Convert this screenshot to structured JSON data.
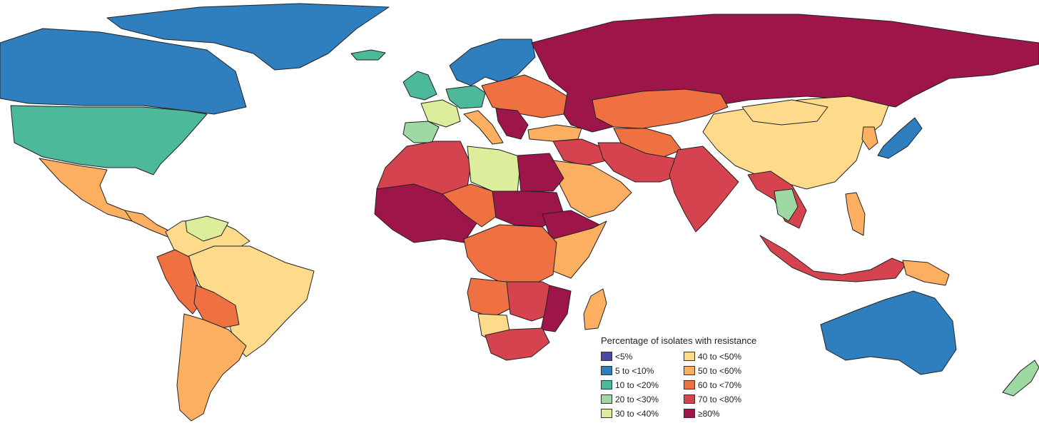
{
  "legend": {
    "title": "Percentage of isolates with resistance",
    "items": [
      {
        "label": "<5%",
        "color": "#4b4aa3"
      },
      {
        "label": "5 to <10%",
        "color": "#2f7fbf"
      },
      {
        "label": "10 to <20%",
        "color": "#4cb99b"
      },
      {
        "label": "20 to <30%",
        "color": "#9ed8a3"
      },
      {
        "label": "30 to <40%",
        "color": "#dcee9c"
      },
      {
        "label": "40 to <50%",
        "color": "#fedb8b"
      },
      {
        "label": "50 to <60%",
        "color": "#fcae61"
      },
      {
        "label": "60 to <70%",
        "color": "#ef7040"
      },
      {
        "label": "70 to <80%",
        "color": "#d5434f"
      },
      {
        "label": "≥80%",
        "color": "#9e1549"
      }
    ]
  },
  "regions": [
    {
      "name": "greenland",
      "class": "5 to <10%"
    },
    {
      "name": "canada",
      "class": "5 to <10%"
    },
    {
      "name": "united-states",
      "class": "10 to <20%"
    },
    {
      "name": "mexico",
      "class": "50 to <60%"
    },
    {
      "name": "central-america",
      "class": "50 to <60%"
    },
    {
      "name": "colombia-venezuela",
      "class": "40 to <50%"
    },
    {
      "name": "guyana",
      "class": "30 to <40%"
    },
    {
      "name": "brazil",
      "class": "40 to <50%"
    },
    {
      "name": "peru",
      "class": "60 to <70%"
    },
    {
      "name": "bolivia",
      "class": "60 to <70%"
    },
    {
      "name": "argentina-chile",
      "class": "50 to <60%"
    },
    {
      "name": "iceland",
      "class": "10 to <20%"
    },
    {
      "name": "scandinavia",
      "class": "5 to <10%"
    },
    {
      "name": "uk-ireland",
      "class": "10 to <20%"
    },
    {
      "name": "france",
      "class": "30 to <40%"
    },
    {
      "name": "iberia",
      "class": "20 to <30%"
    },
    {
      "name": "germany",
      "class": "10 to <20%"
    },
    {
      "name": "eastern-europe",
      "class": "60 to <70%"
    },
    {
      "name": "italy",
      "class": "50 to <60%"
    },
    {
      "name": "balkans",
      "class": "≥80%"
    },
    {
      "name": "russia",
      "class": "≥80%"
    },
    {
      "name": "kazakhstan",
      "class": "60 to <70%"
    },
    {
      "name": "turkey",
      "class": "50 to <60%"
    },
    {
      "name": "middle-east",
      "class": "70 to <80%"
    },
    {
      "name": "arabia",
      "class": "50 to <60%"
    },
    {
      "name": "central-asia",
      "class": "60 to <70%"
    },
    {
      "name": "iran-afghanistan",
      "class": "70 to <80%"
    },
    {
      "name": "india",
      "class": "70 to <80%"
    },
    {
      "name": "china",
      "class": "40 to <50%"
    },
    {
      "name": "mongolia",
      "class": "40 to <50%"
    },
    {
      "name": "japan",
      "class": "5 to <10%"
    },
    {
      "name": "korea",
      "class": "50 to <60%"
    },
    {
      "name": "southeast-asia",
      "class": "70 to <80%"
    },
    {
      "name": "thailand",
      "class": "20 to <30%"
    },
    {
      "name": "philippines",
      "class": "50 to <60%"
    },
    {
      "name": "indonesia",
      "class": "70 to <80%"
    },
    {
      "name": "papua",
      "class": "50 to <60%"
    },
    {
      "name": "australia",
      "class": "5 to <10%"
    },
    {
      "name": "new-zealand",
      "class": "20 to <30%"
    },
    {
      "name": "morocco-algeria",
      "class": "70 to <80%"
    },
    {
      "name": "libya",
      "class": "30 to <40%"
    },
    {
      "name": "egypt",
      "class": "≥80%"
    },
    {
      "name": "west-africa",
      "class": "≥80%"
    },
    {
      "name": "sahel",
      "class": "60 to <70%"
    },
    {
      "name": "sudan",
      "class": "≥80%"
    },
    {
      "name": "ethiopia",
      "class": "≥80%"
    },
    {
      "name": "somalia-kenya",
      "class": "50 to <60%"
    },
    {
      "name": "central-africa",
      "class": "60 to <70%"
    },
    {
      "name": "angola",
      "class": "60 to <70%"
    },
    {
      "name": "east-africa-south",
      "class": "70 to <80%"
    },
    {
      "name": "mozambique",
      "class": "≥80%"
    },
    {
      "name": "namibia",
      "class": "40 to <50%"
    },
    {
      "name": "south-africa",
      "class": "70 to <80%"
    },
    {
      "name": "madagascar",
      "class": "50 to <60%"
    }
  ]
}
